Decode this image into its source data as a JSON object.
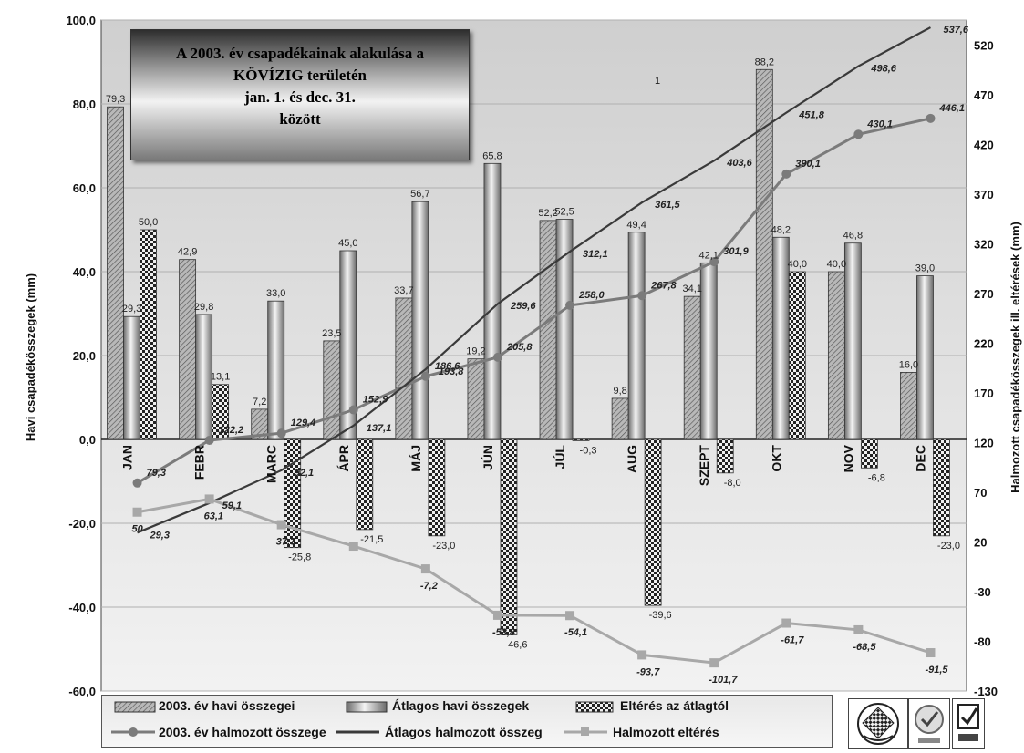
{
  "title_lines": [
    "A 2003. év csapadékainak alakulása a",
    "KÖVÍZIG területén",
    "jan. 1. és dec. 31.",
    "között"
  ],
  "colors": {
    "monthly2003": "#9a9a9a",
    "average": "#c4c4c4",
    "deviation": "#555555",
    "cum2003": "#7b7b7b",
    "cumAvg": "#3a3a3a",
    "cumDev": "#a8a8a8",
    "plot_bg": "#e4e4e4"
  },
  "chart_data": {
    "type": "bar",
    "categories": [
      "JAN",
      "FEBR",
      "MARC",
      "ÁPR",
      "MÁJ",
      "JÚN",
      "JÚL",
      "AUG",
      "SZEPT",
      "OKT",
      "NOV",
      "DEC"
    ],
    "ylabel": "Havi csapadékösszegek (mm)",
    "y2label": "Halmozott csapadékösszegek ill. eltérések (mm)",
    "ylim": [
      -60,
      100
    ],
    "y_ticks": [
      "100,0",
      "80,0",
      "60,0",
      "40,0",
      "20,0",
      "0,0",
      "-20,0",
      "-40,0",
      "-60,0"
    ],
    "y2lim": [
      -130,
      545
    ],
    "y2_ticks": [
      "520",
      "470",
      "420",
      "370",
      "320",
      "270",
      "220",
      "170",
      "120",
      "70",
      "20",
      "-30",
      "-80",
      "-130"
    ],
    "series": [
      {
        "name": "2003. év havi összegei",
        "type": "bar",
        "axis": "left",
        "values": [
          79.3,
          42.9,
          7.2,
          23.5,
          33.7,
          19.2,
          52.2,
          9.8,
          34.1,
          88.2,
          40.0,
          16.0
        ],
        "labels": [
          "79,3",
          "42,9",
          "7,2",
          "23,5",
          "33,7",
          "19,2",
          "52,2",
          "9,8",
          "34,1",
          "88,2",
          "40,0",
          "16,0"
        ]
      },
      {
        "name": "Átlagos havi összegek",
        "type": "bar",
        "axis": "left",
        "values": [
          29.3,
          29.8,
          33.0,
          45.0,
          56.7,
          65.8,
          52.5,
          49.4,
          42.1,
          48.2,
          46.8,
          39.0
        ],
        "labels": [
          "29,3",
          "29,8",
          "33,0",
          "45,0",
          "56,7",
          "65,8",
          "52,5",
          "49,4",
          "42,1",
          "48,2",
          "46,8",
          "39,0"
        ]
      },
      {
        "name": "Eltérés az átlagtól",
        "type": "bar",
        "axis": "left",
        "values": [
          50.0,
          13.1,
          -25.8,
          -21.5,
          -23.0,
          -46.6,
          -0.3,
          -39.6,
          -8.0,
          40.0,
          -6.8,
          -23.0
        ],
        "labels": [
          "50,0",
          "13,1",
          "-25,8",
          "-21,5",
          "-23,0",
          "-46,6",
          "-0,3",
          "-39,6",
          "-8,0",
          "40,0",
          "-6,8",
          "-23,0"
        ]
      },
      {
        "name": "2003. év halmozott összege",
        "type": "line",
        "axis": "right",
        "values": [
          79.3,
          122.2,
          129.4,
          152.9,
          186.6,
          205.8,
          258.0,
          267.8,
          301.9,
          390.1,
          430.1,
          446.1
        ],
        "labels": [
          "79,3",
          "122,2",
          "129,4",
          "152,9",
          "186,6",
          "205,8",
          "258,0",
          "267,8",
          "301,9",
          "390,1",
          "430,1",
          "446,1"
        ]
      },
      {
        "name": "Átlagos halmozott összeg",
        "type": "line",
        "axis": "right",
        "values": [
          29.3,
          59.1,
          92.1,
          137.1,
          193.8,
          259.6,
          312.1,
          361.5,
          403.6,
          451.8,
          498.6,
          537.6
        ],
        "labels": [
          "29,3",
          "59,1",
          "92,1",
          "137,1",
          "193,8",
          "259,6",
          "312,1",
          "361,5",
          "403,6",
          "451,8",
          "498,6",
          "537,6"
        ]
      },
      {
        "name": "Halmozott eltérés",
        "type": "line",
        "axis": "right",
        "values": [
          50,
          63.1,
          37.3,
          15.8,
          -7.2,
          -53.8,
          -54.1,
          -93.7,
          -101.7,
          -61.7,
          -68.5,
          -91.5
        ],
        "labels": [
          "50",
          "63,1",
          "37,3",
          "",
          "-7,2",
          "-53,8",
          "-54,1",
          "-93,7",
          "-101,7",
          "-61,7",
          "-68,5",
          "-91,5"
        ]
      }
    ],
    "stray_mark": "1"
  }
}
